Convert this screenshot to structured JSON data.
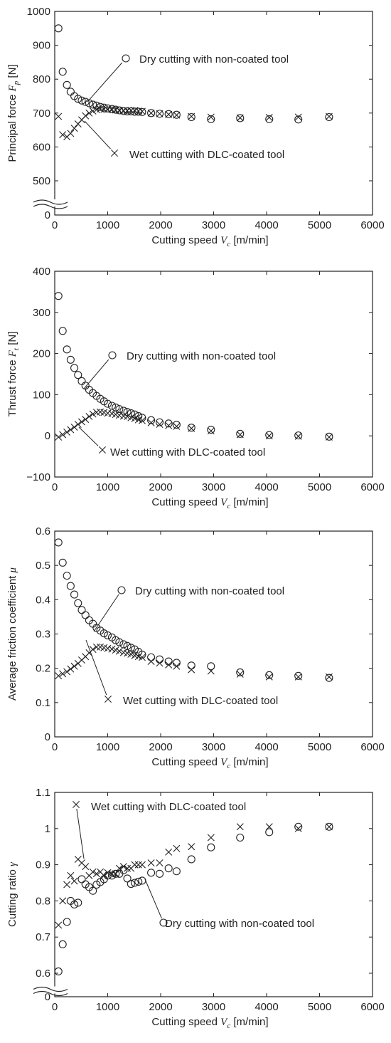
{
  "chart_data": [
    {
      "type": "scatter",
      "xlabel": "Cutting speed",
      "xsymbol": "V",
      "xsub": "c",
      "xunit": "[m/min]",
      "ylabel": "Principal force",
      "ysymbol": "F",
      "ysub": "p",
      "yunit": "[N]",
      "xlim": [
        0,
        6000
      ],
      "ylim": [
        0,
        1000
      ],
      "axis_break": true,
      "break_value": 450,
      "xticks": [
        "0",
        "1000",
        "2000",
        "3000",
        "4000",
        "5000",
        "6000"
      ],
      "yticks": [
        "0",
        "500",
        "600",
        "700",
        "800",
        "900",
        "1000"
      ],
      "ytick_values": [
        0,
        500,
        600,
        700,
        800,
        900,
        1000
      ],
      "series": [
        {
          "name": "Dry cutting with non-coated tool",
          "marker": "circle",
          "x": [
            70,
            150,
            230,
            300,
            370,
            440,
            510,
            580,
            650,
            720,
            790,
            860,
            930,
            1000,
            1080,
            1150,
            1220,
            1300,
            1370,
            1440,
            1510,
            1580,
            1650,
            1820,
            1980,
            2150,
            2300,
            2580,
            2950,
            3500,
            4050,
            4600,
            5180
          ],
          "y": [
            950,
            822,
            783,
            763,
            750,
            742,
            737,
            733,
            729,
            725,
            722,
            718,
            716,
            714,
            712,
            710,
            708,
            706,
            705,
            705,
            704,
            704,
            703,
            700,
            698,
            697,
            695,
            688,
            682,
            685,
            682,
            681,
            688
          ]
        },
        {
          "name": "Wet cutting with DLC-coated tool",
          "marker": "x",
          "x": [
            70,
            150,
            230,
            300,
            370,
            440,
            510,
            580,
            650,
            720,
            790,
            860,
            930,
            1000,
            1080,
            1150,
            1220,
            1300,
            1370,
            1440,
            1510,
            1580,
            1650,
            1820,
            1980,
            2150,
            2300,
            2580,
            2950,
            3500,
            4050,
            4600,
            5180
          ],
          "y": [
            690,
            636,
            630,
            640,
            655,
            668,
            680,
            692,
            700,
            706,
            710,
            712,
            711,
            710,
            710,
            709,
            708,
            707,
            707,
            708,
            708,
            706,
            705,
            700,
            698,
            696,
            694,
            690,
            688,
            686,
            687,
            688,
            690
          ]
        }
      ],
      "annotations": [
        {
          "text": "Dry cutting with non-coated tool",
          "series": 0
        },
        {
          "text": "Wet cutting with DLC-coated tool",
          "series": 1
        }
      ]
    },
    {
      "type": "scatter",
      "xlabel": "Cutting speed",
      "xsymbol": "V",
      "xsub": "c",
      "xunit": "[m/min]",
      "ylabel": "Thrust force",
      "ysymbol": "F",
      "ysub": "t",
      "yunit": "[N]",
      "xlim": [
        0,
        6000
      ],
      "ylim": [
        -100,
        400
      ],
      "axis_break": false,
      "xticks": [
        "0",
        "1000",
        "2000",
        "3000",
        "4000",
        "5000",
        "6000"
      ],
      "yticks": [
        "−100",
        "0",
        "100",
        "200",
        "300",
        "400"
      ],
      "ytick_values": [
        -100,
        0,
        100,
        200,
        300,
        400
      ],
      "series": [
        {
          "name": "Dry cutting with non-coated tool",
          "marker": "circle",
          "x": [
            70,
            150,
            230,
            300,
            370,
            440,
            510,
            580,
            650,
            720,
            790,
            860,
            930,
            1000,
            1080,
            1150,
            1220,
            1300,
            1370,
            1440,
            1510,
            1580,
            1650,
            1820,
            1980,
            2150,
            2300,
            2580,
            2950,
            3500,
            4050,
            4600,
            5180
          ],
          "y": [
            340,
            255,
            210,
            185,
            165,
            148,
            133,
            122,
            112,
            104,
            97,
            90,
            84,
            78,
            73,
            69,
            65,
            61,
            58,
            55,
            52,
            48,
            44,
            38,
            33,
            30,
            27,
            20,
            15,
            5,
            2,
            1,
            -2
          ]
        },
        {
          "name": "Wet cutting with DLC-coated tool",
          "marker": "x",
          "x": [
            70,
            150,
            230,
            300,
            370,
            440,
            510,
            580,
            650,
            720,
            790,
            860,
            930,
            1000,
            1080,
            1150,
            1220,
            1300,
            1370,
            1440,
            1510,
            1580,
            1650,
            1820,
            1980,
            2150,
            2300,
            2580,
            2950,
            3500,
            4050,
            4600,
            5180
          ],
          "y": [
            -3,
            3,
            9,
            15,
            21,
            28,
            34,
            40,
            47,
            53,
            57,
            58,
            57,
            55,
            54,
            52,
            50,
            48,
            47,
            44,
            42,
            39,
            37,
            32,
            28,
            25,
            23,
            18,
            12,
            3,
            0,
            -1,
            -3
          ]
        }
      ],
      "annotations": [
        {
          "text": "Dry cutting with non-coated tool",
          "series": 0
        },
        {
          "text": "Wet cutting with DLC-coated tool",
          "series": 1
        }
      ]
    },
    {
      "type": "scatter",
      "xlabel": "Cutting speed",
      "xsymbol": "V",
      "xsub": "c",
      "xunit": "[m/min]",
      "ylabel": "Average friction coefficient",
      "ysymbol": "μ",
      "ysub": "",
      "yunit": "",
      "xlim": [
        0,
        6000
      ],
      "ylim": [
        0,
        0.6
      ],
      "axis_break": false,
      "xticks": [
        "0",
        "1000",
        "2000",
        "3000",
        "4000",
        "5000",
        "6000"
      ],
      "yticks": [
        "0",
        "0.1",
        "0.2",
        "0.3",
        "0.4",
        "0.5",
        "0.6"
      ],
      "ytick_values": [
        0,
        0.1,
        0.2,
        0.3,
        0.4,
        0.5,
        0.6
      ],
      "series": [
        {
          "name": "Dry cutting with non-coated tool",
          "marker": "circle",
          "x": [
            70,
            150,
            230,
            300,
            370,
            440,
            510,
            580,
            650,
            720,
            790,
            860,
            930,
            1000,
            1080,
            1150,
            1220,
            1300,
            1370,
            1440,
            1510,
            1580,
            1650,
            1820,
            1980,
            2150,
            2300,
            2580,
            2950,
            3500,
            4050,
            4600,
            5180
          ],
          "y": [
            0.567,
            0.508,
            0.47,
            0.44,
            0.415,
            0.39,
            0.37,
            0.355,
            0.34,
            0.33,
            0.318,
            0.31,
            0.302,
            0.296,
            0.29,
            0.282,
            0.276,
            0.27,
            0.265,
            0.26,
            0.255,
            0.248,
            0.24,
            0.232,
            0.226,
            0.22,
            0.216,
            0.208,
            0.206,
            0.188,
            0.18,
            0.178,
            0.172
          ]
        },
        {
          "name": "Wet cutting with DLC-coated tool",
          "marker": "x",
          "x": [
            70,
            150,
            230,
            300,
            370,
            440,
            510,
            580,
            650,
            720,
            790,
            860,
            930,
            1000,
            1080,
            1150,
            1220,
            1300,
            1370,
            1440,
            1510,
            1580,
            1650,
            1820,
            1980,
            2150,
            2300,
            2580,
            2950,
            3500,
            4050,
            4600,
            5180
          ],
          "y": [
            0.178,
            0.184,
            0.19,
            0.198,
            0.206,
            0.214,
            0.224,
            0.234,
            0.245,
            0.255,
            0.262,
            0.262,
            0.26,
            0.258,
            0.256,
            0.253,
            0.25,
            0.246,
            0.244,
            0.241,
            0.237,
            0.234,
            0.232,
            0.22,
            0.215,
            0.21,
            0.206,
            0.196,
            0.192,
            0.183,
            0.175,
            0.175,
            0.175
          ]
        }
      ],
      "annotations": [
        {
          "text": "Dry cutting with non-coated tool",
          "series": 0
        },
        {
          "text": "Wet cutting with DLC-coated tool",
          "series": 1
        }
      ]
    },
    {
      "type": "scatter",
      "xlabel": "Cutting speed",
      "xsymbol": "V",
      "xsub": "c",
      "xunit": "[m/min]",
      "ylabel": "Cutting ratio",
      "ysymbol": "γ",
      "ysub": "",
      "yunit": "",
      "xlim": [
        0,
        6000
      ],
      "ylim": [
        0,
        1.1
      ],
      "axis_break": true,
      "break_value": 0.565,
      "xticks": [
        "0",
        "1000",
        "2000",
        "3000",
        "4000",
        "5000",
        "6000"
      ],
      "yticks": [
        "0",
        "0.6",
        "0.7",
        "0.8",
        "0.9",
        "1",
        "1.1"
      ],
      "ytick_values": [
        0,
        0.6,
        0.7,
        0.8,
        0.9,
        1.0,
        1.1
      ],
      "series": [
        {
          "name": "Dry cutting with non-coated tool",
          "marker": "circle",
          "x": [
            70,
            150,
            230,
            300,
            370,
            440,
            510,
            580,
            650,
            720,
            790,
            860,
            930,
            1000,
            1080,
            1150,
            1220,
            1300,
            1370,
            1440,
            1510,
            1580,
            1650,
            1820,
            1980,
            2150,
            2300,
            2580,
            2950,
            3500,
            4050,
            4600,
            5180
          ],
          "y": [
            0.605,
            0.68,
            0.742,
            0.8,
            0.79,
            0.795,
            0.86,
            0.846,
            0.838,
            0.828,
            0.845,
            0.852,
            0.86,
            0.87,
            0.87,
            0.875,
            0.875,
            0.885,
            0.862,
            0.847,
            0.85,
            0.853,
            0.856,
            0.878,
            0.875,
            0.89,
            0.882,
            0.915,
            0.948,
            0.975,
            0.99,
            1.005,
            1.005
          ]
        },
        {
          "name": "Wet cutting with DLC-coated tool",
          "marker": "x",
          "x": [
            70,
            150,
            230,
            300,
            370,
            440,
            510,
            580,
            650,
            720,
            790,
            860,
            930,
            1000,
            1080,
            1150,
            1220,
            1300,
            1370,
            1440,
            1510,
            1580,
            1650,
            1820,
            1980,
            2150,
            2300,
            2580,
            2950,
            3500,
            4050,
            4600,
            5180
          ],
          "y": [
            0.733,
            0.8,
            0.845,
            0.87,
            0.855,
            0.915,
            0.905,
            0.895,
            0.87,
            0.88,
            0.875,
            0.88,
            0.87,
            0.878,
            0.875,
            0.875,
            0.89,
            0.895,
            0.89,
            0.89,
            0.9,
            0.9,
            0.9,
            0.905,
            0.905,
            0.935,
            0.945,
            0.95,
            0.975,
            1.005,
            1.005,
            1.0,
            1.005
          ]
        }
      ],
      "annotations": [
        {
          "text": "Wet cutting with DLC-coated tool",
          "series": 1
        },
        {
          "text": "Dry cutting with non-coated tool",
          "series": 0
        }
      ]
    }
  ]
}
